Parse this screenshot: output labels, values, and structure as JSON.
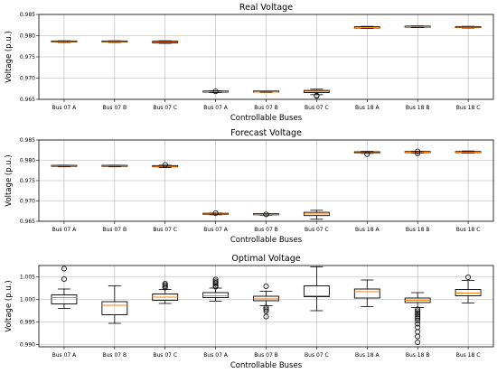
{
  "chart_data": [
    {
      "type": "box",
      "title": "Real Voltage",
      "xlabel": "Controllable Buses",
      "ylabel": "Voltage (p.u.)",
      "ylim": [
        0.965,
        0.985
      ],
      "yticks": [
        "0.965",
        "0.970",
        "0.975",
        "0.980",
        "0.985"
      ],
      "grid": true,
      "categories": [
        "Bus 07 A",
        "Bus 07 B",
        "Bus 07 C",
        "Bus 07 A",
        "Bus 07 B",
        "Bus 07 C",
        "Bus 18 A",
        "Bus 18 B",
        "Bus 18 C"
      ],
      "boxes": [
        {
          "min": 0.9784,
          "q1": 0.9785,
          "median": 0.9786,
          "q3": 0.9787,
          "max": 0.9788,
          "outliers": []
        },
        {
          "min": 0.9784,
          "q1": 0.9785,
          "median": 0.9786,
          "q3": 0.9787,
          "max": 0.9788,
          "outliers": []
        },
        {
          "min": 0.9782,
          "q1": 0.9783,
          "median": 0.9785,
          "q3": 0.9787,
          "max": 0.9788,
          "outliers": []
        },
        {
          "min": 0.9666,
          "q1": 0.9667,
          "median": 0.9668,
          "q3": 0.9669,
          "max": 0.967,
          "outliers": [
            0.9669
          ]
        },
        {
          "min": 0.9666,
          "q1": 0.9667,
          "median": 0.9667,
          "q3": 0.9668,
          "max": 0.9668,
          "outliers": []
        },
        {
          "min": 0.9661,
          "q1": 0.9666,
          "median": 0.9669,
          "q3": 0.9671,
          "max": 0.9674,
          "outliers": [
            0.9658,
            0.9659
          ]
        },
        {
          "min": 0.9817,
          "q1": 0.9818,
          "median": 0.9819,
          "q3": 0.9821,
          "max": 0.9822,
          "outliers": []
        },
        {
          "min": 0.9819,
          "q1": 0.982,
          "median": 0.9821,
          "q3": 0.9822,
          "max": 0.9823,
          "outliers": []
        },
        {
          "min": 0.9818,
          "q1": 0.9819,
          "median": 0.982,
          "q3": 0.9821,
          "max": 0.9822,
          "outliers": []
        }
      ]
    },
    {
      "type": "box",
      "title": "Forecast Voltage",
      "xlabel": "Controllable Buses",
      "ylabel": "Voltage (p.u.)",
      "ylim": [
        0.965,
        0.985
      ],
      "yticks": [
        "0.965",
        "0.970",
        "0.975",
        "0.980",
        "0.985"
      ],
      "grid": true,
      "categories": [
        "Bus 07 A",
        "Bus 07 B",
        "Bus 07 C",
        "Bus 07 A",
        "Bus 07 B",
        "Bus 07 C",
        "Bus 18 A",
        "Bus 18 B",
        "Bus 18 C"
      ],
      "boxes": [
        {
          "min": 0.9784,
          "q1": 0.9785,
          "median": 0.9786,
          "q3": 0.9787,
          "max": 0.9788,
          "outliers": []
        },
        {
          "min": 0.9784,
          "q1": 0.9785,
          "median": 0.9786,
          "q3": 0.9787,
          "max": 0.9788,
          "outliers": []
        },
        {
          "min": 0.9782,
          "q1": 0.9784,
          "median": 0.9785,
          "q3": 0.9787,
          "max": 0.9788,
          "outliers": [
            0.9789
          ]
        },
        {
          "min": 0.9666,
          "q1": 0.9667,
          "median": 0.9668,
          "q3": 0.9669,
          "max": 0.967,
          "outliers": [
            0.967
          ]
        },
        {
          "min": 0.9665,
          "q1": 0.9666,
          "median": 0.9667,
          "q3": 0.9668,
          "max": 0.9668,
          "outliers": [
            0.9667
          ]
        },
        {
          "min": 0.9655,
          "q1": 0.9664,
          "median": 0.9668,
          "q3": 0.9672,
          "max": 0.9677,
          "outliers": []
        },
        {
          "min": 0.9817,
          "q1": 0.9818,
          "median": 0.9819,
          "q3": 0.9821,
          "max": 0.9822,
          "outliers": [
            0.9815
          ]
        },
        {
          "min": 0.9818,
          "q1": 0.9819,
          "median": 0.982,
          "q3": 0.9821,
          "max": 0.9822,
          "outliers": [
            0.9822,
            0.9817
          ]
        },
        {
          "min": 0.9818,
          "q1": 0.9819,
          "median": 0.982,
          "q3": 0.9821,
          "max": 0.9823,
          "outliers": []
        }
      ]
    },
    {
      "type": "box",
      "title": "Optimal Voltage",
      "xlabel": "Controllable Buses",
      "ylabel": "Voltage (p.u.)",
      "ylim": [
        0.9895,
        1.0075
      ],
      "yticks": [
        "0.990",
        "0.995",
        "1.000",
        "1.005"
      ],
      "grid": true,
      "categories": [
        "Bus 07 A",
        "Bus 07 B",
        "Bus 07 C",
        "Bus 07 A",
        "Bus 07 B",
        "Bus 07 C",
        "Bus 18 A",
        "Bus 18 B",
        "Bus 18 C"
      ],
      "boxes": [
        {
          "min": 0.998,
          "q1": 0.999,
          "median": 1.0004,
          "q3": 1.001,
          "max": 1.0023,
          "outliers": [
            1.0068,
            1.0045
          ]
        },
        {
          "min": 0.9947,
          "q1": 0.9966,
          "median": 0.9987,
          "q3": 0.9995,
          "max": 1.003,
          "outliers": []
        },
        {
          "min": 0.9991,
          "q1": 0.9998,
          "median": 1.0005,
          "q3": 1.0012,
          "max": 1.0022,
          "outliers": [
            1.0035,
            1.0032,
            1.0029,
            1.0026
          ]
        },
        {
          "min": 0.9996,
          "q1": 1.0004,
          "median": 1.0008,
          "q3": 1.0015,
          "max": 1.0025,
          "outliers": [
            1.0044,
            1.004,
            1.0037,
            1.0034,
            1.003,
            1.0028
          ]
        },
        {
          "min": 0.9986,
          "q1": 0.9997,
          "median": 1.0001,
          "q3": 1.0007,
          "max": 1.0018,
          "outliers": [
            1.0029,
            0.9982,
            0.9978,
            0.9974,
            0.9962
          ]
        },
        {
          "min": 0.9975,
          "q1": 1.0006,
          "median": 1.0008,
          "q3": 1.003,
          "max": 1.0072,
          "outliers": []
        },
        {
          "min": 0.9984,
          "q1": 1.0003,
          "median": 1.0017,
          "q3": 1.0023,
          "max": 1.0043,
          "outliers": []
        },
        {
          "min": 0.9982,
          "q1": 0.9993,
          "median": 0.9998,
          "q3": 1.0003,
          "max": 1.0015,
          "outliers": [
            0.9978,
            0.9974,
            0.997,
            0.9966,
            0.9962,
            0.9958,
            0.9953,
            0.9946,
            0.9938,
            0.9928,
            0.9918,
            0.9905
          ]
        },
        {
          "min": 0.9992,
          "q1": 1.0008,
          "median": 1.0014,
          "q3": 1.0022,
          "max": 1.0042,
          "outliers": [
            1.0049
          ]
        }
      ]
    }
  ],
  "colors": {
    "median": "#ff7f0e",
    "box": "#000000",
    "grid": "#b0b0b0"
  }
}
